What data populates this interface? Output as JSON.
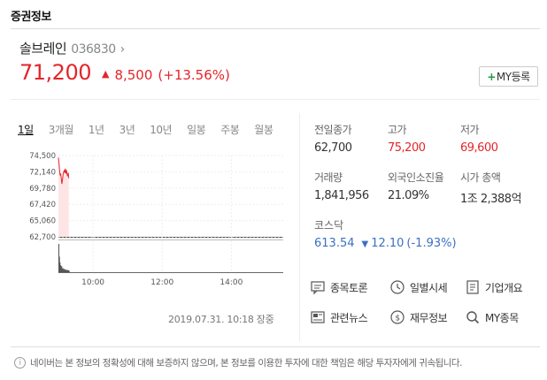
{
  "header": {
    "title": "증권정보"
  },
  "stock": {
    "name": "솔브레인",
    "code": "036830",
    "price": "71,200",
    "change": "8,500",
    "change_rate": "(+13.56%)",
    "my_button": "MY등록"
  },
  "tabs": [
    "1일",
    "3개월",
    "1년",
    "3년",
    "10년",
    "일봉",
    "주봉",
    "월봉"
  ],
  "info": {
    "prev_close_label": "전일종가",
    "prev_close": "62,700",
    "high_label": "고가",
    "high": "75,200",
    "low_label": "저가",
    "low": "69,600",
    "volume_label": "거래량",
    "volume": "1,841,956",
    "foreign_label": "외국인소진율",
    "foreign": "21.09%",
    "mktcap_label": "시가 총액",
    "mktcap": "1조 2,388억"
  },
  "index": {
    "name": "코스닥",
    "value": "613.54",
    "change": "12.10",
    "rate": "(-1.93%)"
  },
  "links": {
    "discussion": "종목토론",
    "daily": "일별시세",
    "company": "기업개요",
    "news": "관련뉴스",
    "finance": "재무정보",
    "my": "MY종목"
  },
  "timestamp": "2019.07.31. 10:18 장중",
  "notice": "네이버는 본 정보의 정확성에 대해 보증하지 않으며, 본 정보를 이용한 투자에 대한 책임은 해당 투자자에게 귀속됩니다.",
  "colors": {
    "up": "#e3262a",
    "down": "#3c6fc4",
    "fill": "#fde5e6"
  },
  "chart_data": {
    "type": "line",
    "y_ticks": [
      "74,500",
      "72,140",
      "69,780",
      "67,420",
      "65,060",
      "62,700"
    ],
    "y_range": [
      62700,
      74500
    ],
    "x_ticks": [
      "10:00",
      "12:00",
      "14:00"
    ],
    "x_range_minutes": [
      540,
      930
    ],
    "baseline": 62700,
    "series": [
      {
        "x": [
          540,
          541,
          542,
          543,
          544,
          545,
          546,
          547,
          548,
          549,
          550,
          551,
          552,
          553,
          554,
          555,
          556,
          557,
          558
        ],
        "values": [
          74200,
          73300,
          72400,
          71600,
          71900,
          71100,
          70400,
          71000,
          71700,
          72100,
          72300,
          72000,
          72600,
          71900,
          72400,
          71800,
          71500,
          72000,
          71200
        ]
      }
    ],
    "volume": [
      1.0,
      0.55,
      0.35,
      0.25,
      0.18,
      0.22,
      0.12,
      0.15,
      0.1,
      0.12,
      0.08,
      0.1,
      0.07,
      0.09,
      0.06,
      0.08,
      0.06,
      0.07,
      0.05
    ]
  }
}
